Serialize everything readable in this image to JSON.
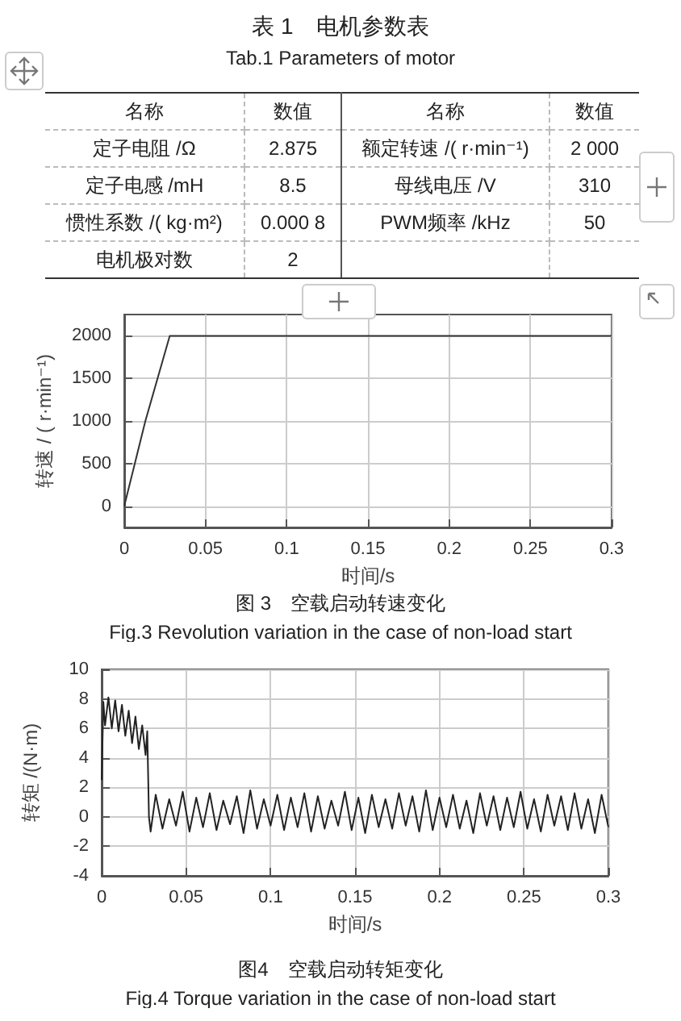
{
  "chart_data": [
    {
      "type": "other",
      "title": "表 1　电机参数表",
      "subtitle": "Tab.1 Parameters of motor",
      "annotations": [
        "名称",
        "数值",
        "名称",
        "数值",
        "定子电阻 /Ω",
        "2.875",
        "额定转速 /( r·min⁻¹)",
        "2 000",
        "定子电感 /mH",
        "8.5",
        "母线电压 /V",
        "310",
        "惯性系数 /( kg·m²)",
        "0.000 8",
        "PWM频率 /kHz",
        "50",
        "电机极对数",
        "2"
      ]
    },
    {
      "type": "line",
      "title": "图 3　空载启动转速变化",
      "subtitle": "Fig.3 Revolution variation in the case of non-load start",
      "xlabel": "时间/s",
      "ylabel": "转速 / ( r·min⁻¹)",
      "x": [
        0,
        0.013,
        0.028,
        0.3
      ],
      "series": [
        {
          "color": "#333333",
          "values": [
            0,
            1000,
            2000,
            2000
          ]
        }
      ],
      "xlim": [
        0,
        0.3
      ],
      "xticks": [
        0,
        0.05,
        0.1,
        0.15,
        0.2,
        0.25,
        0.3
      ],
      "ylim": [
        -250,
        2250
      ],
      "yticks": [
        0,
        500,
        1000,
        1500,
        2000
      ],
      "grid": true,
      "marker": "none",
      "line_style": "solid"
    },
    {
      "type": "line",
      "title": "图4　空载启动转矩变化",
      "subtitle": "Fig.4 Torque variation in the case of non-load start",
      "xlabel": "时间/s",
      "ylabel": "转矩 /(N·m)",
      "x": [
        0,
        0.001,
        0.002,
        0.004,
        0.006,
        0.008,
        0.01,
        0.012,
        0.014,
        0.016,
        0.018,
        0.02,
        0.022,
        0.024,
        0.026,
        0.027,
        0.028,
        0.029,
        0.032,
        0.036,
        0.04,
        0.044,
        0.048,
        0.052,
        0.056,
        0.06,
        0.064,
        0.068,
        0.072,
        0.076,
        0.08,
        0.084,
        0.088,
        0.092,
        0.096,
        0.1,
        0.104,
        0.108,
        0.112,
        0.116,
        0.12,
        0.124,
        0.128,
        0.132,
        0.136,
        0.14,
        0.144,
        0.148,
        0.152,
        0.156,
        0.16,
        0.164,
        0.168,
        0.172,
        0.176,
        0.18,
        0.184,
        0.188,
        0.192,
        0.196,
        0.2,
        0.204,
        0.208,
        0.212,
        0.216,
        0.22,
        0.224,
        0.228,
        0.232,
        0.236,
        0.24,
        0.244,
        0.248,
        0.252,
        0.256,
        0.26,
        0.264,
        0.268,
        0.272,
        0.276,
        0.28,
        0.284,
        0.288,
        0.292,
        0.296,
        0.3
      ],
      "series": [
        {
          "color": "#222222",
          "values": [
            2.5,
            7.8,
            6.2,
            8.1,
            6.0,
            7.9,
            5.8,
            7.6,
            5.5,
            7.2,
            5.0,
            6.8,
            4.6,
            6.2,
            4.2,
            5.8,
            0.0,
            -1.0,
            1.5,
            -0.8,
            1.2,
            -0.6,
            1.7,
            -1.0,
            1.3,
            -0.7,
            1.6,
            -0.9,
            1.1,
            -0.5,
            1.4,
            -1.1,
            1.8,
            -0.8,
            1.2,
            -0.6,
            1.5,
            -0.9,
            1.3,
            -0.7,
            1.6,
            -1.0,
            1.4,
            -0.8,
            1.1,
            -0.6,
            1.7,
            -0.9,
            1.3,
            -1.1,
            1.5,
            -0.7,
            1.2,
            -0.8,
            1.6,
            -0.6,
            1.4,
            -1.0,
            1.8,
            -0.9,
            1.3,
            -0.7,
            1.5,
            -0.8,
            1.1,
            -1.1,
            1.6,
            -0.6,
            1.4,
            -0.9,
            1.3,
            -0.7,
            1.7,
            -0.8,
            1.2,
            -1.0,
            1.5,
            -0.6,
            1.4,
            -0.9,
            1.6,
            -0.8,
            1.2,
            -1.1,
            1.5,
            -0.7
          ]
        }
      ],
      "xlim": [
        0,
        0.3
      ],
      "xticks": [
        0,
        0.05,
        0.1,
        0.15,
        0.2,
        0.25,
        0.3
      ],
      "ylim": [
        -4,
        10
      ],
      "yticks": [
        -4,
        -2,
        0,
        2,
        4,
        6,
        8,
        10
      ],
      "grid": true,
      "marker": "none",
      "line_style": "solid"
    }
  ]
}
